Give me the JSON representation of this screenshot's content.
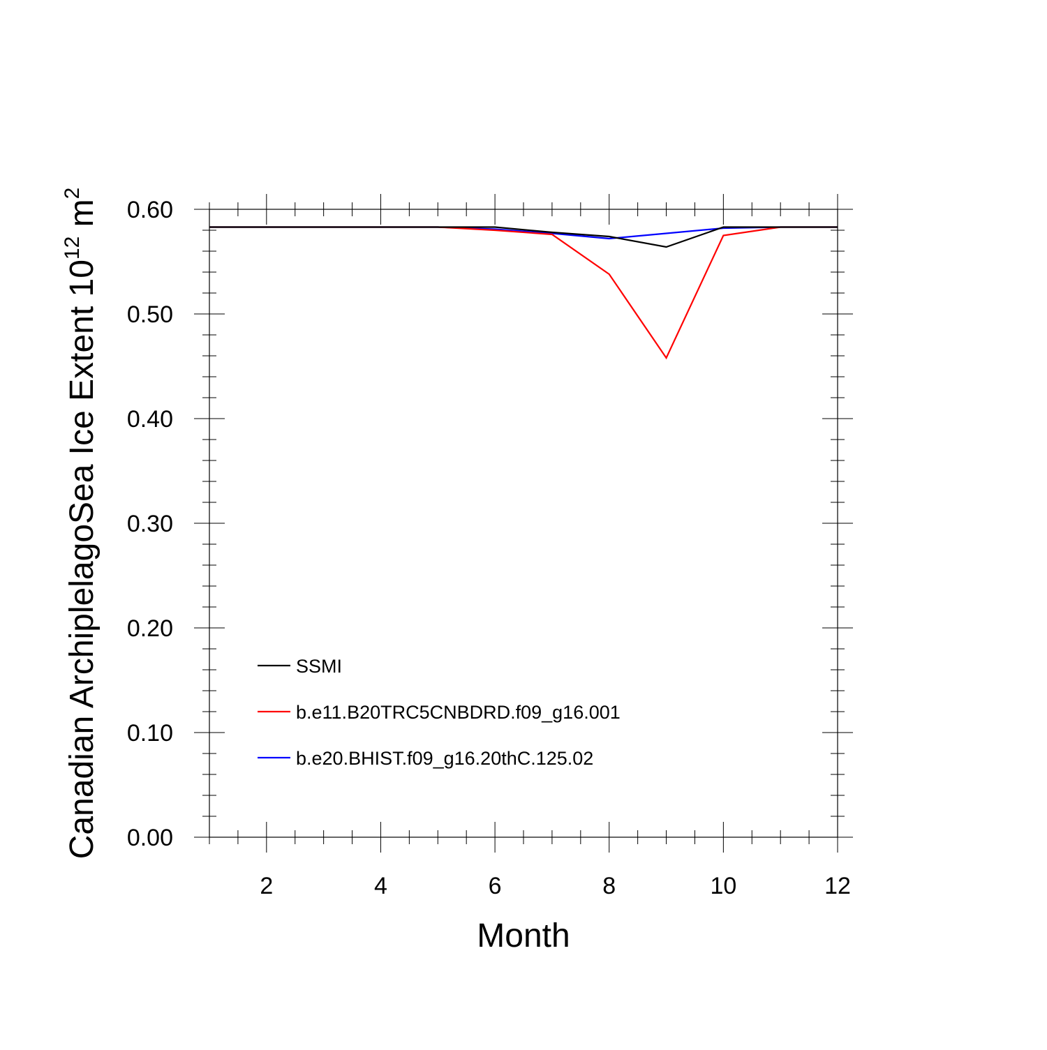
{
  "chart_data": {
    "type": "line",
    "title": "",
    "xlabel": "Month",
    "ylabel": {
      "main": "Canadian ArchiplelagoSea Ice Extent 10",
      "exponent": "12",
      "unit": " m",
      "unit_exponent": "2"
    },
    "xlim": [
      1,
      12
    ],
    "ylim": [
      0.0,
      0.6
    ],
    "x": [
      1,
      2,
      3,
      4,
      5,
      6,
      7,
      8,
      9,
      10,
      11,
      12
    ],
    "x_ticks": [
      2,
      4,
      6,
      8,
      10,
      12
    ],
    "x_tick_labels": [
      "2",
      "4",
      "6",
      "8",
      "10",
      "12"
    ],
    "y_ticks": [
      0.0,
      0.1,
      0.2,
      0.3,
      0.4,
      0.5,
      0.6
    ],
    "y_tick_labels": [
      "0.00",
      "0.10",
      "0.20",
      "0.30",
      "0.40",
      "0.50",
      "0.60"
    ],
    "grid": false,
    "legend_position": "bottom-left",
    "series": [
      {
        "name": "SSMI",
        "color": "#000000",
        "values": [
          0.583,
          0.583,
          0.583,
          0.583,
          0.583,
          0.583,
          0.578,
          0.574,
          0.564,
          0.583,
          0.583,
          0.583
        ]
      },
      {
        "name": "b.e11.B20TRC5CNBDRD.f09_g16.001",
        "color": "#ff0000",
        "values": [
          0.583,
          0.583,
          0.583,
          0.583,
          0.583,
          0.58,
          0.576,
          0.538,
          0.458,
          0.575,
          0.583,
          0.583
        ]
      },
      {
        "name": "b.e20.BHIST.f09_g16.20thC.125.02",
        "color": "#0000ff",
        "values": [
          0.583,
          0.583,
          0.583,
          0.583,
          0.583,
          0.581,
          0.577,
          0.572,
          0.577,
          0.582,
          0.583,
          0.583
        ]
      }
    ]
  }
}
